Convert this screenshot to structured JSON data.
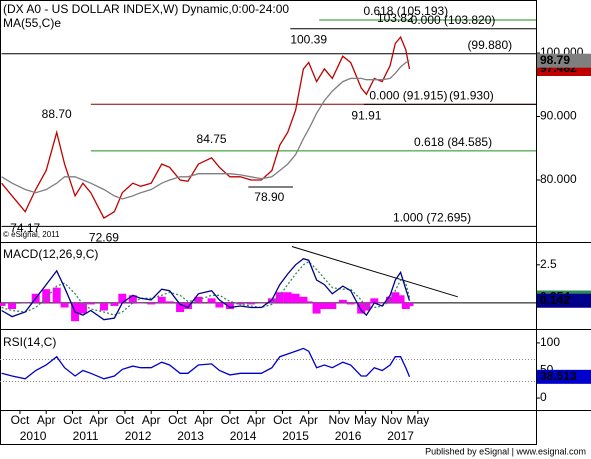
{
  "title": "(DX A0 - US DOLLAR INDEX,W) Dynamic,0:00-24:00",
  "watermark": "© eSignal, 2011",
  "footer": "Published by eSignal | www.esignal.com",
  "chart_data": [
    {
      "type": "line",
      "x": [
        2009.4,
        2009.6,
        2009.85,
        2010.05,
        2010.25,
        2010.45,
        2010.6,
        2010.8,
        2010.95,
        2011.1,
        2011.35,
        2011.55,
        2011.7,
        2011.9,
        2012.05,
        2012.25,
        2012.45,
        2012.6,
        2012.8,
        2012.95,
        2013.15,
        2013.4,
        2013.55,
        2013.75,
        2013.95,
        2014.15,
        2014.35,
        2014.55,
        2014.7,
        2014.85,
        2015.0,
        2015.15,
        2015.25,
        2015.4,
        2015.55,
        2015.7,
        2015.9,
        2016.05,
        2016.25,
        2016.35,
        2016.5,
        2016.65,
        2016.8,
        2016.9,
        2017.0,
        2017.1,
        2017.17
      ],
      "xlim": [
        2009.37,
        2019.58
      ],
      "ylim": [
        70.55,
        108.35
      ],
      "yticks": [
        {
          "value": 80,
          "label": "80.000"
        },
        {
          "value": 90,
          "label": "90.000"
        },
        {
          "value": 100,
          "label": "100.000"
        }
      ],
      "series": [
        {
          "color": "#c00000",
          "flag": true,
          "values": [
            79.5,
            77.5,
            75.0,
            78.5,
            81.5,
            87.5,
            82.5,
            77.5,
            79.5,
            78.0,
            74.0,
            75.0,
            78.0,
            79.5,
            79.0,
            79.5,
            82.5,
            82.0,
            80.0,
            79.8,
            82.5,
            83.5,
            82.0,
            80.5,
            80.5,
            80.0,
            80.0,
            81.5,
            85.5,
            87.5,
            91.0,
            97.5,
            98.5,
            95.5,
            97.5,
            96.0,
            99.5,
            98.5,
            94.5,
            93.5,
            96.0,
            95.5,
            98.0,
            101.5,
            102.5,
            100.5,
            97.482
          ]
        },
        {
          "name": "MA(55,C)e",
          "color": "#7f7f7f",
          "flag": true,
          "values": [
            80.5,
            79.5,
            78.5,
            78.0,
            78.5,
            79.5,
            80.5,
            80.5,
            80.0,
            79.5,
            78.5,
            77.5,
            77.0,
            77.5,
            78.0,
            78.5,
            79.5,
            80.0,
            80.5,
            80.5,
            81.0,
            81.0,
            81.0,
            81.0,
            80.8,
            80.5,
            80.2,
            80.5,
            81.5,
            82.5,
            84.0,
            86.5,
            88.0,
            90.5,
            92.5,
            94.0,
            95.5,
            96.0,
            96.0,
            95.8,
            95.8,
            95.8,
            96.0,
            96.8,
            97.8,
            98.5,
            98.79
          ]
        }
      ],
      "levels": [
        {
          "label": "0.618 (105.193)",
          "value": 105.193,
          "color": "#1a8f1a",
          "from": 2015.45,
          "label_at": 2017.1
        },
        {
          "label": "0.000 (103.820)",
          "value": 103.82,
          "color": "#000000",
          "from": 2014.9,
          "label_at": 2018.0
        },
        {
          "label": "(99.880)",
          "value": 99.88,
          "color": "#000000",
          "from": 2009.4,
          "label_at": 2018.7
        },
        {
          "label": "(91.930)",
          "value": 91.93,
          "color": "#8b0000",
          "from": 2011.1,
          "label_at": 2018.35
        },
        {
          "label": "0.000 (91.915)",
          "value": 91.915,
          "color": "#000000",
          "from": 2016.3,
          "label_at": 2017.15
        },
        {
          "label": "0.618 (84.585)",
          "value": 84.585,
          "color": "#1a8f1a",
          "from": 2011.1,
          "label_at": 2018.0
        },
        {
          "label": "78.90",
          "value": 78.9,
          "color": "#000000",
          "from": 2014.1,
          "to": 2014.95,
          "label_at": 2014.5,
          "label_side": "below"
        },
        {
          "label": "1.000 (72.695)",
          "value": 72.695,
          "color": "#000000",
          "from": 2009.4,
          "label_at": 2017.6
        }
      ],
      "point_labels": [
        {
          "x": 2010.45,
          "value": 88.7,
          "label": "88.70",
          "side": "above"
        },
        {
          "x": 2009.85,
          "value": 74.17,
          "label": "74.17",
          "side": "below"
        },
        {
          "x": 2011.35,
          "value": 72.69,
          "label": "72.69",
          "side": "below"
        },
        {
          "x": 2013.4,
          "value": 84.75,
          "label": "84.75",
          "side": "above"
        },
        {
          "x": 2015.25,
          "value": 100.39,
          "label": "100.39",
          "side": "above"
        },
        {
          "x": 2016.9,
          "value": 103.82,
          "label": "103.82",
          "side": "above"
        },
        {
          "x": 2016.35,
          "value": 91.91,
          "label": "91.91",
          "side": "below"
        }
      ]
    },
    {
      "type": "line",
      "title": "MACD(12,26,9,C)",
      "ylim": [
        -1.45,
        3.8
      ],
      "yticks": [
        2.5
      ],
      "series": [
        {
          "color": "#ff00ff",
          "style": "bar",
          "values": [
            -0.2,
            -0.4,
            0.0,
            0.6,
            0.9,
            1.0,
            -0.3,
            -1.2,
            -0.7,
            -0.1,
            -0.5,
            -0.2,
            0.6,
            0.5,
            0.0,
            -0.1,
            0.4,
            0.1,
            -0.6,
            -0.4,
            0.4,
            0.3,
            -0.3,
            -0.4,
            -0.1,
            -0.1,
            0.0,
            0.3,
            0.7,
            0.7,
            0.6,
            0.4,
            0.1,
            -0.7,
            -0.4,
            -0.4,
            0.2,
            -0.1,
            -0.7,
            -0.5,
            0.3,
            0.0,
            0.4,
            0.7,
            0.5,
            -0.4,
            -0.212
          ]
        },
        {
          "color": "#2e8b57",
          "style": "dotted",
          "flag": true,
          "values": [
            -0.3,
            -0.5,
            -0.6,
            -0.3,
            0.3,
            1.1,
            1.3,
            0.6,
            -0.1,
            -0.4,
            -0.6,
            -0.8,
            -0.6,
            0.0,
            0.3,
            0.3,
            0.5,
            0.7,
            0.5,
            0.1,
            0.2,
            0.5,
            0.5,
            0.1,
            -0.1,
            -0.2,
            -0.3,
            -0.1,
            0.5,
            1.2,
            1.9,
            2.5,
            2.7,
            2.2,
            1.6,
            1.0,
            0.9,
            0.9,
            0.2,
            -0.3,
            -0.3,
            -0.2,
            0.1,
            0.8,
            1.5,
            1.3,
            0.354
          ]
        },
        {
          "color": "#00008b",
          "flag": true,
          "values": [
            -0.5,
            -0.9,
            -0.6,
            0.3,
            1.2,
            2.1,
            1.0,
            -0.6,
            -0.8,
            -0.5,
            -1.1,
            -1.0,
            0.0,
            0.5,
            0.3,
            0.2,
            0.9,
            0.8,
            -0.1,
            -0.3,
            0.6,
            0.8,
            0.2,
            -0.3,
            -0.2,
            -0.3,
            -0.3,
            0.2,
            1.2,
            1.9,
            2.5,
            2.9,
            2.8,
            1.5,
            1.2,
            0.6,
            1.1,
            0.8,
            -0.5,
            -0.8,
            0.0,
            -0.2,
            0.5,
            1.5,
            2.0,
            0.9,
            0.142
          ]
        }
      ],
      "trendline": {
        "x": [
          2014.93,
          2018.09
        ],
        "values": [
          3.7,
          0.4
        ]
      }
    },
    {
      "type": "line",
      "title": "RSI(14,C)",
      "ylim": [
        -18,
        118
      ],
      "yticks": [
        0,
        50,
        100
      ],
      "reference_lines": [
        70,
        30
      ],
      "series": [
        {
          "color": "#0000cd",
          "flag": true,
          "values": [
            45,
            40,
            35,
            50,
            60,
            75,
            55,
            40,
            50,
            45,
            35,
            40,
            52,
            58,
            55,
            55,
            65,
            60,
            45,
            45,
            60,
            62,
            50,
            42,
            45,
            45,
            45,
            55,
            75,
            80,
            85,
            90,
            85,
            55,
            60,
            55,
            65,
            60,
            40,
            40,
            55,
            50,
            60,
            75,
            75,
            55,
            38.513
          ]
        }
      ],
      "xticks": [
        {
          "value": 2009.75,
          "label": "Oct"
        },
        {
          "value": 2010.25,
          "label": "Apr"
        },
        {
          "value": 2010.75,
          "label": "Oct"
        },
        {
          "value": 2011.25,
          "label": "Apr"
        },
        {
          "value": 2011.75,
          "label": "Oct"
        },
        {
          "value": 2012.25,
          "label": "Apr"
        },
        {
          "value": 2012.75,
          "label": "Oct"
        },
        {
          "value": 2013.25,
          "label": "Apr"
        },
        {
          "value": 2013.75,
          "label": "Oct"
        },
        {
          "value": 2014.25,
          "label": "Apr"
        },
        {
          "value": 2014.75,
          "label": "Oct"
        },
        {
          "value": 2015.25,
          "label": "Apr"
        },
        {
          "value": 2015.83,
          "label": "Nov"
        },
        {
          "value": 2016.33,
          "label": "May"
        },
        {
          "value": 2016.83,
          "label": "Nov"
        },
        {
          "value": 2017.33,
          "label": "May"
        }
      ],
      "xtick_years": [
        2010,
        2011,
        2012,
        2013,
        2014,
        2015,
        2016,
        2017
      ]
    }
  ]
}
